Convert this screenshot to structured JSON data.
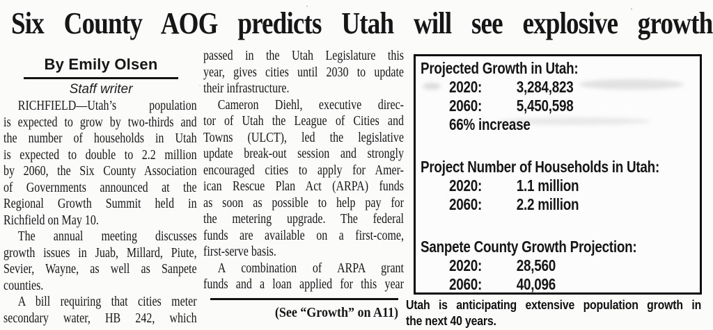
{
  "headline": "Six County AOG predicts Utah will see explosive growth",
  "byline": {
    "author": "By Emily Olsen",
    "role": "Staff writer"
  },
  "article": {
    "left_column": {
      "paragraphs": [
        {
          "indent": true,
          "end": true,
          "lines": [
            "RICHFIELD—Utah’s population",
            "is expected to grow by two-thirds and",
            "the number of households in Utah",
            "is expected to double to 2.2 million",
            "by 2060, the Six County Association",
            "of Governments announced at the",
            "Regional Growth Summit held in",
            "Richfield on May 10."
          ]
        },
        {
          "indent": true,
          "end": true,
          "lines": [
            "The annual meeting discusses",
            "growth issues in Juab, Millard, Piute,",
            "Sevier, Wayne, as well as Sanpete",
            "counties."
          ]
        },
        {
          "indent": true,
          "end": false,
          "lines": [
            "A bill requiring that cities meter",
            "secondary water, HB 242, which"
          ]
        }
      ]
    },
    "middle_column": {
      "paragraphs": [
        {
          "indent": false,
          "end": true,
          "lines": [
            "passed in the Utah Legislature this",
            "year, gives cities until 2030 to update",
            "their infrastructure."
          ]
        },
        {
          "indent": true,
          "end": true,
          "lines": [
            "Cameron Diehl, executive direc-",
            "tor of Utah the League of Cities and",
            "Towns (ULCT), led the legislative",
            "update break-out session and strongly",
            "encouraged cities to apply for Amer-",
            "ican Rescue Plan Act (ARPA) funds",
            "as soon as possible to help pay for",
            "the metering upgrade. The federal",
            "funds are available on a first-come,",
            "first-serve basis."
          ]
        },
        {
          "indent": true,
          "end": false,
          "lines": [
            "A combination of ARPA grant",
            "funds and a loan applied for this year"
          ]
        }
      ]
    },
    "continuation": "(See “Growth” on A11)"
  },
  "infobox": {
    "sections": [
      {
        "title": "Projected Growth in Utah:",
        "rows": [
          {
            "label": "2020:",
            "value": "3,284,823"
          },
          {
            "label": "2060:",
            "value": "5,450,598"
          },
          {
            "label": "66% increase",
            "value": ""
          }
        ]
      },
      {
        "title": "Project Number of Households in Utah:",
        "rows": [
          {
            "label": "2020:",
            "value": "1.1 million"
          },
          {
            "label": "2060:",
            "value": "2.2 million"
          }
        ]
      },
      {
        "title": "Sanpete County Growth Projection:",
        "rows": [
          {
            "label": "2020:",
            "value": "28,560"
          },
          {
            "label": "2060:",
            "value": "40,096"
          }
        ]
      }
    ],
    "caption": {
      "paragraphs": [
        {
          "indent": false,
          "end": true,
          "lines": [
            "Utah is anticipating extensive population growth in",
            "the next 40 years."
          ]
        }
      ]
    }
  },
  "colors": {
    "ink": "#161616",
    "paper": "#fbfbfa",
    "rule": "#121212"
  }
}
